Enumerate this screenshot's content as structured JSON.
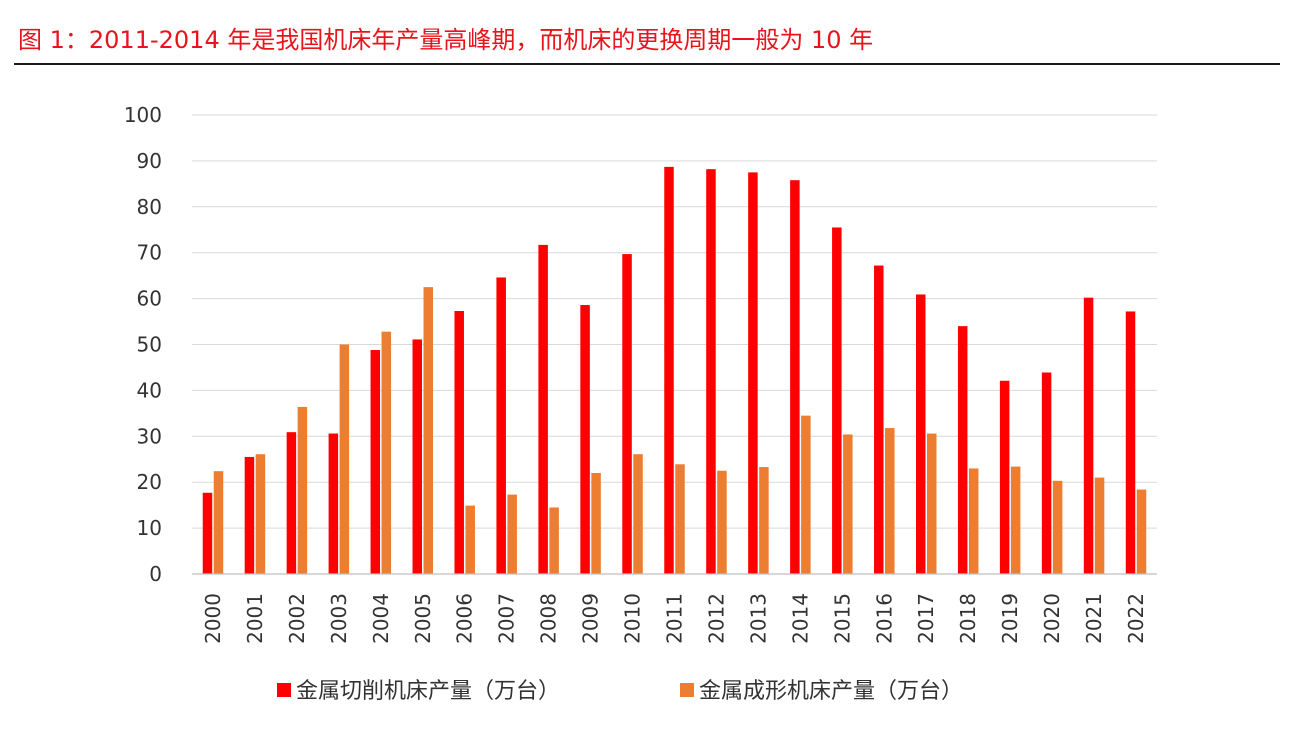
{
  "figure": {
    "title": "图 1：2011-2014 年是我国机床年产量高峰期，而机床的更换周期一般为 10 年"
  },
  "chart_data": {
    "type": "bar",
    "categories": [
      "2000",
      "2001",
      "2002",
      "2003",
      "2004",
      "2005",
      "2006",
      "2007",
      "2008",
      "2009",
      "2010",
      "2011",
      "2012",
      "2013",
      "2014",
      "2015",
      "2016",
      "2017",
      "2018",
      "2019",
      "2020",
      "2021",
      "2022"
    ],
    "series": [
      {
        "name": "金属切削机床产量（万台）",
        "color": "#ff0000",
        "values": [
          17.7,
          25.5,
          30.9,
          30.6,
          48.8,
          51.1,
          57.3,
          64.6,
          71.7,
          58.6,
          69.7,
          88.7,
          88.2,
          87.5,
          85.8,
          75.5,
          67.2,
          60.9,
          54.0,
          42.1,
          43.9,
          60.2,
          57.2
        ]
      },
      {
        "name": "金属成形机床产量（万台）",
        "color": "#ed7d31",
        "values": [
          22.4,
          26.1,
          36.4,
          50.0,
          52.8,
          62.5,
          14.9,
          17.3,
          14.5,
          22.0,
          26.1,
          23.9,
          22.5,
          23.3,
          34.5,
          30.4,
          31.8,
          30.6,
          23.0,
          23.4,
          20.3,
          21.0,
          18.4
        ]
      }
    ],
    "y_ticks": [
      "0",
      "10",
      "20",
      "30",
      "40",
      "50",
      "60",
      "70",
      "80",
      "90",
      "100"
    ],
    "ylim": [
      0,
      100
    ],
    "grid": true,
    "legend_position": "bottom"
  }
}
